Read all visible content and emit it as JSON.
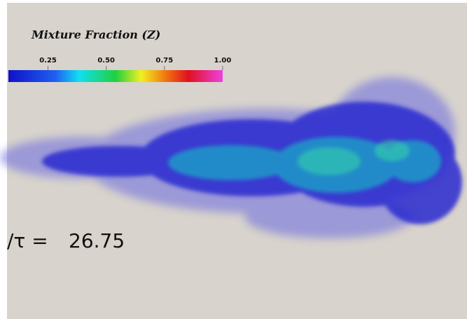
{
  "colorbar": {
    "title": "Mixture Fraction (Z)",
    "lim": [
      0.08,
      1.0
    ],
    "ticks": [
      0.25,
      {
        "value": 0.5,
        "label": "0.50"
      },
      0.75,
      {
        "value": 1.0,
        "label": "1.00"
      }
    ]
  },
  "time": {
    "label": "/τ =",
    "value": 26.75
  }
}
